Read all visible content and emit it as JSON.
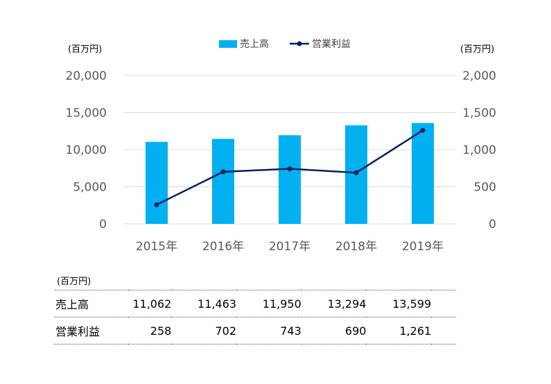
{
  "chart_data": {
    "type": "bar+line",
    "categories": [
      "2015年",
      "2016年",
      "2017年",
      "2018年",
      "2019年"
    ],
    "series": [
      {
        "name": "売上高",
        "type": "bar",
        "axis": "left",
        "values": [
          11062,
          11463,
          11950,
          13294,
          13599
        ],
        "color": "#00B0F0"
      },
      {
        "name": "営業利益",
        "type": "line",
        "axis": "right",
        "values": [
          258,
          702,
          743,
          690,
          1261
        ],
        "color": "#002060"
      }
    ],
    "y_left": {
      "unit": "(百万円)",
      "ylim": [
        0,
        20000
      ],
      "ticks": [
        "0",
        "5,000",
        "10,000",
        "15,000",
        "20,000"
      ]
    },
    "y_right": {
      "unit": "(百万円)",
      "ylim": [
        0,
        2000
      ],
      "ticks": [
        "0",
        "500",
        "1,000",
        "1,500",
        "2,000"
      ]
    },
    "legend": "top-center",
    "grid": true
  },
  "table": {
    "unit": "(百万円)",
    "rows": [
      {
        "label": "売上高",
        "values": [
          "11,062",
          "11,463",
          "11,950",
          "13,294",
          "13,599"
        ]
      },
      {
        "label": "営業利益",
        "values": [
          "258",
          "702",
          "743",
          "690",
          "1,261"
        ]
      }
    ]
  }
}
